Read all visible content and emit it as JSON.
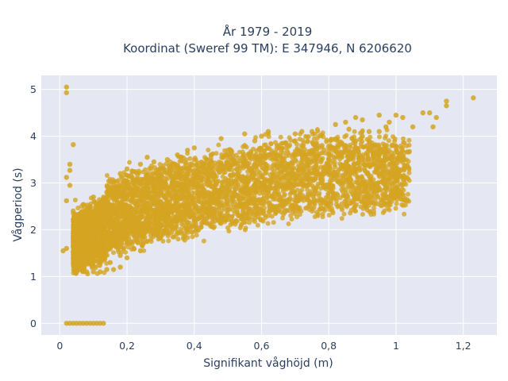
{
  "chart_data": {
    "type": "scatter",
    "title_lines": [
      "År 1979 - 2019",
      "Koordinat (Sweref 99 TM): E 347946, N 6206620"
    ],
    "xlabel": "Signifikant våghöjd (m)",
    "ylabel": "Vågperiod (s)",
    "xlim": [
      -0.055,
      1.3
    ],
    "ylim": [
      -0.25,
      5.3
    ],
    "x_ticks": [
      {
        "value": 0,
        "label": "0"
      },
      {
        "value": 0.2,
        "label": "0,2"
      },
      {
        "value": 0.4,
        "label": "0,4"
      },
      {
        "value": 0.6,
        "label": "0,6"
      },
      {
        "value": 0.8,
        "label": "0,8"
      },
      {
        "value": 1.0,
        "label": "1"
      },
      {
        "value": 1.2,
        "label": "1,2"
      }
    ],
    "y_ticks": [
      {
        "value": 0,
        "label": "0"
      },
      {
        "value": 1,
        "label": "1"
      },
      {
        "value": 2,
        "label": "2"
      },
      {
        "value": 3,
        "label": "3"
      },
      {
        "value": 4,
        "label": "4"
      },
      {
        "value": 5,
        "label": "5"
      }
    ],
    "grid": true,
    "legend": "none",
    "marker_color": "#d4a422",
    "plot_bgcolor": "#e5e8f2",
    "points": [
      [
        0.02,
        5.05
      ],
      [
        0.02,
        4.93
      ],
      [
        0.04,
        3.82
      ],
      [
        0.03,
        3.4
      ],
      [
        0.03,
        3.27
      ],
      [
        0.02,
        3.12
      ],
      [
        0.03,
        2.95
      ],
      [
        0.02,
        2.62
      ],
      [
        0.04,
        2.4
      ],
      [
        0.02,
        1.6
      ],
      [
        0.01,
        1.55
      ],
      [
        0.02,
        0.0
      ],
      [
        0.03,
        0.0
      ],
      [
        0.04,
        0.0
      ],
      [
        0.05,
        0.0
      ],
      [
        0.06,
        0.0
      ],
      [
        0.07,
        0.0
      ],
      [
        0.08,
        0.0
      ],
      [
        0.09,
        0.0
      ],
      [
        0.1,
        0.0
      ],
      [
        0.11,
        0.0
      ],
      [
        0.12,
        0.0
      ],
      [
        0.13,
        0.0
      ],
      [
        0.05,
        1.5
      ],
      [
        0.06,
        1.8
      ],
      [
        0.07,
        2.0
      ],
      [
        0.08,
        2.3
      ],
      [
        0.09,
        2.5
      ],
      [
        0.1,
        2.7
      ],
      [
        0.06,
        1.2
      ],
      [
        0.08,
        1.1
      ],
      [
        0.1,
        1.1
      ],
      [
        0.12,
        1.1
      ],
      [
        0.14,
        1.15
      ],
      [
        0.1,
        2.2
      ],
      [
        0.12,
        2.5
      ],
      [
        0.14,
        2.8
      ],
      [
        0.16,
        3.0
      ],
      [
        0.18,
        3.2
      ],
      [
        0.2,
        3.3
      ],
      [
        0.12,
        1.6
      ],
      [
        0.15,
        1.8
      ],
      [
        0.18,
        2.0
      ],
      [
        0.2,
        2.2
      ],
      [
        0.22,
        2.3
      ],
      [
        0.25,
        2.4
      ],
      [
        0.15,
        1.3
      ],
      [
        0.18,
        1.45
      ],
      [
        0.22,
        1.6
      ],
      [
        0.26,
        1.75
      ],
      [
        0.3,
        1.85
      ],
      [
        0.35,
        1.95
      ],
      [
        0.25,
        2.8
      ],
      [
        0.28,
        3.1
      ],
      [
        0.3,
        3.3
      ],
      [
        0.32,
        3.5
      ],
      [
        0.35,
        3.6
      ],
      [
        0.38,
        3.7
      ],
      [
        0.3,
        2.6
      ],
      [
        0.35,
        2.8
      ],
      [
        0.4,
        2.9
      ],
      [
        0.42,
        3.1
      ],
      [
        0.45,
        3.3
      ],
      [
        0.48,
        3.4
      ],
      [
        0.4,
        2.2
      ],
      [
        0.45,
        2.4
      ],
      [
        0.5,
        2.6
      ],
      [
        0.55,
        2.8
      ],
      [
        0.58,
        2.9
      ],
      [
        0.6,
        3.0
      ],
      [
        0.45,
        3.6
      ],
      [
        0.5,
        3.7
      ],
      [
        0.55,
        3.8
      ],
      [
        0.58,
        3.9
      ],
      [
        0.6,
        4.0
      ],
      [
        0.62,
        3.6
      ],
      [
        0.65,
        3.2
      ],
      [
        0.68,
        3.4
      ],
      [
        0.7,
        3.5
      ],
      [
        0.72,
        3.6
      ],
      [
        0.75,
        3.7
      ],
      [
        0.78,
        3.8
      ],
      [
        0.8,
        3.5
      ],
      [
        0.82,
        3.7
      ],
      [
        0.85,
        3.8
      ],
      [
        0.88,
        3.9
      ],
      [
        0.9,
        4.0
      ],
      [
        0.92,
        4.1
      ],
      [
        0.85,
        4.3
      ],
      [
        0.88,
        4.4
      ],
      [
        0.9,
        4.35
      ],
      [
        0.95,
        4.45
      ],
      [
        0.97,
        4.2
      ],
      [
        1.0,
        4.45
      ],
      [
        0.75,
        4.1
      ],
      [
        0.7,
        3.9
      ],
      [
        0.65,
        3.8
      ],
      [
        0.92,
        3.9
      ],
      [
        0.95,
        4.1
      ],
      [
        0.98,
        4.3
      ],
      [
        1.02,
        4.4
      ],
      [
        1.05,
        4.2
      ],
      [
        1.08,
        4.5
      ],
      [
        1.1,
        4.5
      ],
      [
        1.12,
        4.4
      ],
      [
        1.11,
        4.2
      ],
      [
        1.15,
        4.75
      ],
      [
        1.15,
        4.65
      ],
      [
        1.23,
        4.82
      ],
      [
        0.58,
        2.6
      ],
      [
        0.55,
        2.25
      ],
      [
        0.42,
        2.05
      ],
      [
        0.38,
        2.15
      ],
      [
        0.32,
        2.1
      ],
      [
        0.28,
        1.95
      ],
      [
        0.22,
        1.75
      ],
      [
        0.18,
        1.2
      ],
      [
        0.16,
        1.15
      ],
      [
        0.2,
        1.4
      ],
      [
        0.24,
        1.55
      ],
      [
        0.55,
        4.05
      ],
      [
        0.48,
        3.95
      ],
      [
        0.4,
        3.75
      ],
      [
        0.36,
        3.55
      ],
      [
        0.28,
        3.45
      ],
      [
        0.26,
        3.55
      ],
      [
        0.24,
        3.4
      ],
      [
        0.7,
        4.05
      ],
      [
        0.72,
        4.1
      ],
      [
        0.82,
        4.25
      ],
      [
        0.86,
        4.15
      ],
      [
        0.62,
        4.1
      ]
    ]
  }
}
